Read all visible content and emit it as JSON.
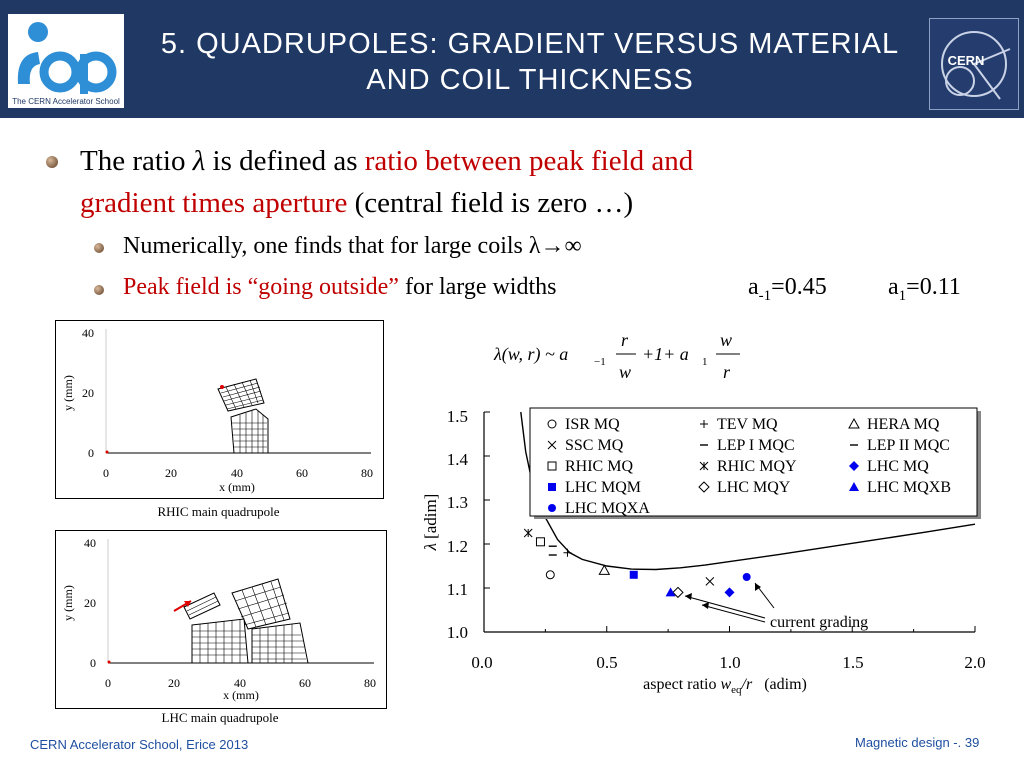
{
  "header": {
    "title_line1": "5. Quadrupoles: gradient versus material",
    "title_line2": "and coil thickness",
    "logo_left_caption": "The CERN Accelerator School",
    "logo_right_text": "CERN"
  },
  "bullets": {
    "main_pre": "The ratio ",
    "main_lambda": "λ",
    "main_mid": " is defined as ",
    "main_red1": "ratio between peak field and",
    "main_red2": "gradient times aperture",
    "main_post": " (central field is zero …)",
    "sub1": "Numerically, one finds that for large coils λ→∞",
    "sub2_red": "Peak field is “going outside”",
    "sub2_rest": " for large widths",
    "a_minus1_label": "a",
    "a_minus1_sub": "-1",
    "a_minus1_value": "=0.45",
    "a1_label": "a",
    "a1_sub": "1",
    "a1_value": "=0.11"
  },
  "formula": {
    "lhs": "λ(w, r) ~ a",
    "lhs_sub": "−1",
    "frac1_num": "r",
    "frac1_den": "w",
    "mid": "+1+ a",
    "mid_sub": "1",
    "frac2_num": "w",
    "frac2_den": "r"
  },
  "rhic_plot": {
    "caption": "RHIC main quadrupole",
    "xlabel": "x (mm)",
    "ylabel": "y (mm)",
    "xticks": [
      "0",
      "20",
      "40",
      "60",
      "80"
    ],
    "yticks": [
      "0",
      "20",
      "40"
    ]
  },
  "lhc_plot": {
    "caption": "LHC main quadrupole",
    "xlabel": "x (mm)",
    "ylabel": "y (mm)",
    "xticks": [
      "0",
      "20",
      "40",
      "60",
      "80"
    ],
    "yticks": [
      "0",
      "20",
      "40"
    ]
  },
  "chart_data": {
    "type": "scatter",
    "xlabel_pre": "aspect ratio ",
    "xlabel_w": "w",
    "xlabel_sub": "eq",
    "xlabel_post": "/r",
    "xlabel_unit": "(adim)",
    "ylabel_lambda": "λ",
    "ylabel_unit": "[adim]",
    "xlim": [
      0.0,
      2.0
    ],
    "ylim": [
      1.0,
      1.5
    ],
    "xticks": [
      "0.0",
      "0.5",
      "1.0",
      "1.5",
      "2.0"
    ],
    "yticks": [
      "1.0",
      "1.1",
      "1.2",
      "1.3",
      "1.4",
      "1.5"
    ],
    "annotation": "current grading",
    "curve": {
      "x": [
        0.15,
        0.17,
        0.2,
        0.25,
        0.3,
        0.35,
        0.4,
        0.5,
        0.6,
        0.7,
        0.8,
        0.9,
        1.0,
        1.2,
        1.4,
        1.6,
        1.8,
        2.0
      ],
      "y": [
        1.5,
        1.41,
        1.33,
        1.26,
        1.21,
        1.18,
        1.165,
        1.15,
        1.143,
        1.142,
        1.146,
        1.152,
        1.16,
        1.176,
        1.193,
        1.21,
        1.227,
        1.245
      ]
    },
    "series": [
      {
        "name": "ISR MQ",
        "marker": "circle-open",
        "color": "#000000",
        "x": [
          0.27
        ],
        "y": [
          1.13
        ]
      },
      {
        "name": "TEV MQ",
        "marker": "plus",
        "color": "#000000",
        "x": [
          0.34
        ],
        "y": [
          1.18
        ]
      },
      {
        "name": "HERA MQ",
        "marker": "triangle-open",
        "color": "#000000",
        "x": [
          0.49
        ],
        "y": [
          1.14
        ]
      },
      {
        "name": "SSC MQ",
        "marker": "x",
        "color": "#000000",
        "x": [
          0.92
        ],
        "y": [
          1.115
        ]
      },
      {
        "name": "LEP I MQC",
        "marker": "dash",
        "color": "#000000",
        "x": [
          0.28
        ],
        "y": [
          1.175
        ]
      },
      {
        "name": "LEP II MQC",
        "marker": "dash",
        "color": "#000000",
        "x": [
          0.28
        ],
        "y": [
          1.195
        ]
      },
      {
        "name": "RHIC MQ",
        "marker": "square-open",
        "color": "#000000",
        "x": [
          0.23
        ],
        "y": [
          1.205
        ]
      },
      {
        "name": "RHIC MQY",
        "marker": "asterisk",
        "color": "#000000",
        "x": [
          0.18
        ],
        "y": [
          1.225
        ]
      },
      {
        "name": "LHC MQ",
        "marker": "diamond",
        "color": "#0000ee",
        "x": [
          1.0
        ],
        "y": [
          1.09
        ]
      },
      {
        "name": "LHC MQM",
        "marker": "square",
        "color": "#0000ee",
        "x": [
          0.61
        ],
        "y": [
          1.13
        ]
      },
      {
        "name": "LHC MQY",
        "marker": "diamond-open",
        "color": "#000000",
        "x": [
          0.79
        ],
        "y": [
          1.09
        ]
      },
      {
        "name": "LHC MQXB",
        "marker": "triangle",
        "color": "#0000ee",
        "x": [
          0.76
        ],
        "y": [
          1.09
        ]
      },
      {
        "name": "LHC MQXA",
        "marker": "circle",
        "color": "#0000ee",
        "x": [
          1.07
        ],
        "y": [
          1.125
        ]
      }
    ]
  },
  "footer": {
    "left": "CERN Accelerator School, Erice 2013",
    "right": "Magnetic design -. 39"
  }
}
